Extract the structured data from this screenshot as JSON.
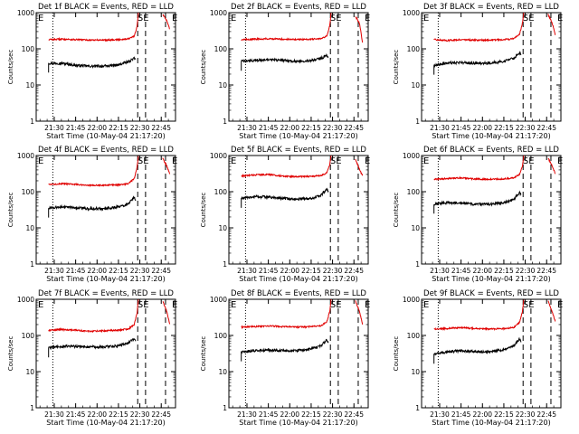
{
  "chart_data": [
    {
      "type": "line",
      "title": "Det 1f BLACK = Events, RED = LLD",
      "xlabel": "Start Time (10-May-04 21:17:20)",
      "ylabel": "Counts/sec",
      "ylog": true,
      "ylim": [
        1,
        1000
      ],
      "xticks": [
        "21:30",
        "21:45",
        "22:00",
        "22:15",
        "22:30",
        "22:45"
      ],
      "yticks": [
        "1",
        "10",
        "100",
        "1000"
      ],
      "markers": [
        "E",
        "SE",
        "E"
      ],
      "series": [
        {
          "name": "BLACK",
          "color": "#000000",
          "x": [
            "21:26",
            "21:35",
            "21:45",
            "21:55",
            "22:05",
            "22:15",
            "22:22",
            "22:26",
            "22:27"
          ],
          "values": [
            40,
            40,
            35,
            33,
            33,
            36,
            44,
            55,
            50
          ]
        },
        {
          "name": "RED",
          "color": "#e00000",
          "x": [
            "21:26",
            "21:35",
            "21:45",
            "21:55",
            "22:05",
            "22:15",
            "22:22",
            "22:26",
            "22:28",
            "22:29",
            "22:46",
            "22:49",
            "22:51"
          ],
          "values": [
            180,
            185,
            180,
            175,
            175,
            180,
            190,
            220,
            400,
            1000,
            900,
            600,
            350
          ]
        }
      ]
    },
    {
      "type": "line",
      "title": "Det 2f BLACK = Events, RED = LLD",
      "xlabel": "Start Time (10-May-04 21:17:20)",
      "ylabel": "Counts/sec",
      "ylog": true,
      "ylim": [
        1,
        1000
      ],
      "xticks": [
        "21:30",
        "21:45",
        "22:00",
        "22:15",
        "22:30",
        "22:45"
      ],
      "yticks": [
        "1",
        "10",
        "100",
        "1000"
      ],
      "markers": [
        "E",
        "SE",
        "E"
      ],
      "series": [
        {
          "name": "BLACK",
          "color": "#000000",
          "x": [
            "21:26",
            "21:35",
            "21:45",
            "21:55",
            "22:05",
            "22:15",
            "22:22",
            "22:26",
            "22:27"
          ],
          "values": [
            45,
            48,
            50,
            48,
            45,
            48,
            55,
            65,
            58
          ]
        },
        {
          "name": "RED",
          "color": "#e00000",
          "x": [
            "21:26",
            "21:35",
            "21:45",
            "21:55",
            "22:05",
            "22:15",
            "22:22",
            "22:26",
            "22:28",
            "22:29",
            "22:46",
            "22:49",
            "22:51"
          ],
          "values": [
            180,
            185,
            190,
            185,
            180,
            185,
            190,
            230,
            420,
            1000,
            800,
            500,
            150
          ]
        }
      ]
    },
    {
      "type": "line",
      "title": "Det 3f BLACK = Events, RED = LLD",
      "xlabel": "Start Time (10-May-04 21:17:20)",
      "ylabel": "Counts/sec",
      "ylog": true,
      "ylim": [
        1,
        1000
      ],
      "xticks": [
        "21:30",
        "21:45",
        "22:00",
        "22:15",
        "22:30",
        "22:45"
      ],
      "yticks": [
        "1",
        "10",
        "100",
        "1000"
      ],
      "markers": [
        "E",
        "SE",
        "E"
      ],
      "series": [
        {
          "name": "BLACK",
          "color": "#000000",
          "x": [
            "21:26",
            "21:35",
            "21:45",
            "21:55",
            "22:05",
            "22:15",
            "22:22",
            "22:26",
            "22:27"
          ],
          "values": [
            35,
            40,
            42,
            40,
            40,
            45,
            55,
            80,
            70
          ]
        },
        {
          "name": "RED",
          "color": "#e00000",
          "x": [
            "21:26",
            "21:35",
            "21:45",
            "21:55",
            "22:05",
            "22:15",
            "22:22",
            "22:26",
            "22:28",
            "22:29",
            "22:46",
            "22:49",
            "22:51"
          ],
          "values": [
            180,
            170,
            180,
            175,
            175,
            180,
            190,
            260,
            500,
            1000,
            900,
            500,
            250
          ]
        }
      ]
    },
    {
      "type": "line",
      "title": "Det 4f BLACK = Events, RED = LLD",
      "xlabel": "Start Time (10-May-04 21:17:20)",
      "ylabel": "Counts/sec",
      "ylog": true,
      "ylim": [
        1,
        1000
      ],
      "xticks": [
        "21:30",
        "21:45",
        "22:00",
        "22:15",
        "22:30",
        "22:45"
      ],
      "yticks": [
        "1",
        "10",
        "100",
        "1000"
      ],
      "markers": [
        "E",
        "SE",
        "E"
      ],
      "series": [
        {
          "name": "BLACK",
          "color": "#000000",
          "x": [
            "21:26",
            "21:35",
            "21:45",
            "21:55",
            "22:05",
            "22:15",
            "22:22",
            "22:26",
            "22:27"
          ],
          "values": [
            35,
            38,
            36,
            34,
            34,
            38,
            45,
            70,
            60
          ]
        },
        {
          "name": "RED",
          "color": "#e00000",
          "x": [
            "21:26",
            "21:35",
            "21:45",
            "21:55",
            "22:05",
            "22:15",
            "22:22",
            "22:26",
            "22:28",
            "22:29",
            "22:46",
            "22:49",
            "22:51"
          ],
          "values": [
            160,
            165,
            160,
            150,
            150,
            155,
            165,
            230,
            450,
            1000,
            850,
            500,
            300
          ]
        }
      ]
    },
    {
      "type": "line",
      "title": "Det 5f BLACK = Events, RED = LLD",
      "xlabel": "Start Time (10-May-04 21:17:20)",
      "ylabel": "Counts/sec",
      "ylog": true,
      "ylim": [
        1,
        1000
      ],
      "xticks": [
        "21:30",
        "21:45",
        "22:00",
        "22:15",
        "22:30",
        "22:45"
      ],
      "yticks": [
        "1",
        "10",
        "100",
        "1000"
      ],
      "markers": [
        "E",
        "SE",
        "E"
      ],
      "series": [
        {
          "name": "BLACK",
          "color": "#000000",
          "x": [
            "21:26",
            "21:35",
            "21:45",
            "21:55",
            "22:05",
            "22:15",
            "22:22",
            "22:26",
            "22:27"
          ],
          "values": [
            65,
            72,
            72,
            65,
            62,
            65,
            80,
            120,
            100
          ]
        },
        {
          "name": "RED",
          "color": "#e00000",
          "x": [
            "21:26",
            "21:35",
            "21:45",
            "21:55",
            "22:05",
            "22:15",
            "22:22",
            "22:26",
            "22:28",
            "22:29",
            "22:46",
            "22:49",
            "22:51"
          ],
          "values": [
            270,
            290,
            300,
            270,
            260,
            265,
            280,
            330,
            550,
            1000,
            800,
            400,
            280
          ]
        }
      ]
    },
    {
      "type": "line",
      "title": "Det 6f BLACK = Events, RED = LLD",
      "xlabel": "Start Time (10-May-04 21:17:20)",
      "ylabel": "Counts/sec",
      "ylog": true,
      "ylim": [
        1,
        1000
      ],
      "xticks": [
        "21:30",
        "21:45",
        "22:00",
        "22:15",
        "22:30",
        "22:45"
      ],
      "yticks": [
        "1",
        "10",
        "100",
        "1000"
      ],
      "markers": [
        "E",
        "SE",
        "E"
      ],
      "series": [
        {
          "name": "BLACK",
          "color": "#000000",
          "x": [
            "21:26",
            "21:35",
            "21:45",
            "21:55",
            "22:05",
            "22:15",
            "22:22",
            "22:26",
            "22:27"
          ],
          "values": [
            45,
            50,
            48,
            45,
            45,
            50,
            60,
            95,
            80
          ]
        },
        {
          "name": "RED",
          "color": "#e00000",
          "x": [
            "21:26",
            "21:35",
            "21:45",
            "21:55",
            "22:05",
            "22:15",
            "22:22",
            "22:26",
            "22:28",
            "22:29",
            "22:46",
            "22:49",
            "22:51"
          ],
          "values": [
            220,
            230,
            240,
            225,
            220,
            225,
            240,
            300,
            500,
            1000,
            850,
            500,
            320
          ]
        }
      ]
    },
    {
      "type": "line",
      "title": "Det 7f BLACK = Events, RED = LLD",
      "xlabel": "Start Time (10-May-04 21:17:20)",
      "ylabel": "Counts/sec",
      "ylog": true,
      "ylim": [
        1,
        1000
      ],
      "xticks": [
        "21:30",
        "21:45",
        "22:00",
        "22:15",
        "22:30",
        "22:45"
      ],
      "yticks": [
        "1",
        "10",
        "100",
        "1000"
      ],
      "markers": [
        "E",
        "SE",
        "E"
      ],
      "series": [
        {
          "name": "BLACK",
          "color": "#000000",
          "x": [
            "21:26",
            "21:35",
            "21:45",
            "21:55",
            "22:05",
            "22:15",
            "22:22",
            "22:26",
            "22:27"
          ],
          "values": [
            45,
            50,
            50,
            48,
            48,
            52,
            62,
            80,
            70
          ]
        },
        {
          "name": "RED",
          "color": "#e00000",
          "x": [
            "21:26",
            "21:35",
            "21:45",
            "21:55",
            "22:05",
            "22:15",
            "22:22",
            "22:26",
            "22:28",
            "22:29",
            "22:46",
            "22:49",
            "22:51"
          ],
          "values": [
            140,
            145,
            140,
            130,
            135,
            140,
            150,
            200,
            400,
            1000,
            900,
            450,
            200
          ]
        }
      ]
    },
    {
      "type": "line",
      "title": "Det 8f BLACK = Events, RED = LLD",
      "xlabel": "Start Time (10-May-04 21:17:20)",
      "ylabel": "Counts/sec",
      "ylog": true,
      "ylim": [
        1,
        1000
      ],
      "xticks": [
        "21:30",
        "21:45",
        "22:00",
        "22:15",
        "22:30",
        "22:45"
      ],
      "yticks": [
        "1",
        "10",
        "100",
        "1000"
      ],
      "markers": [
        "E",
        "SE",
        "E"
      ],
      "series": [
        {
          "name": "BLACK",
          "color": "#000000",
          "x": [
            "21:26",
            "21:35",
            "21:45",
            "21:55",
            "22:05",
            "22:15",
            "22:22",
            "22:26",
            "22:27"
          ],
          "values": [
            35,
            38,
            40,
            38,
            38,
            42,
            52,
            75,
            65
          ]
        },
        {
          "name": "RED",
          "color": "#e00000",
          "x": [
            "21:26",
            "21:35",
            "21:45",
            "21:55",
            "22:05",
            "22:15",
            "22:22",
            "22:26",
            "22:28",
            "22:29",
            "22:46",
            "22:49",
            "22:51"
          ],
          "values": [
            170,
            175,
            185,
            175,
            170,
            175,
            185,
            240,
            450,
            1000,
            900,
            450,
            200
          ]
        }
      ]
    },
    {
      "type": "line",
      "title": "Det 9f BLACK = Events, RED = LLD",
      "xlabel": "Start Time (10-May-04 21:17:20)",
      "ylabel": "Counts/sec",
      "ylog": true,
      "ylim": [
        1,
        1000
      ],
      "xticks": [
        "21:30",
        "21:45",
        "22:00",
        "22:15",
        "22:30",
        "22:45"
      ],
      "yticks": [
        "1",
        "10",
        "100",
        "1000"
      ],
      "markers": [
        "E",
        "SE",
        "E"
      ],
      "series": [
        {
          "name": "BLACK",
          "color": "#000000",
          "x": [
            "21:26",
            "21:35",
            "21:45",
            "21:55",
            "22:05",
            "22:15",
            "22:22",
            "22:26",
            "22:27"
          ],
          "values": [
            30,
            35,
            38,
            36,
            35,
            40,
            50,
            80,
            70
          ]
        },
        {
          "name": "RED",
          "color": "#e00000",
          "x": [
            "21:26",
            "21:35",
            "21:45",
            "21:55",
            "22:05",
            "22:15",
            "22:22",
            "22:26",
            "22:28",
            "22:29",
            "22:46",
            "22:49",
            "22:51"
          ],
          "values": [
            150,
            155,
            165,
            155,
            150,
            155,
            165,
            230,
            450,
            1000,
            900,
            450,
            250
          ]
        }
      ]
    }
  ]
}
